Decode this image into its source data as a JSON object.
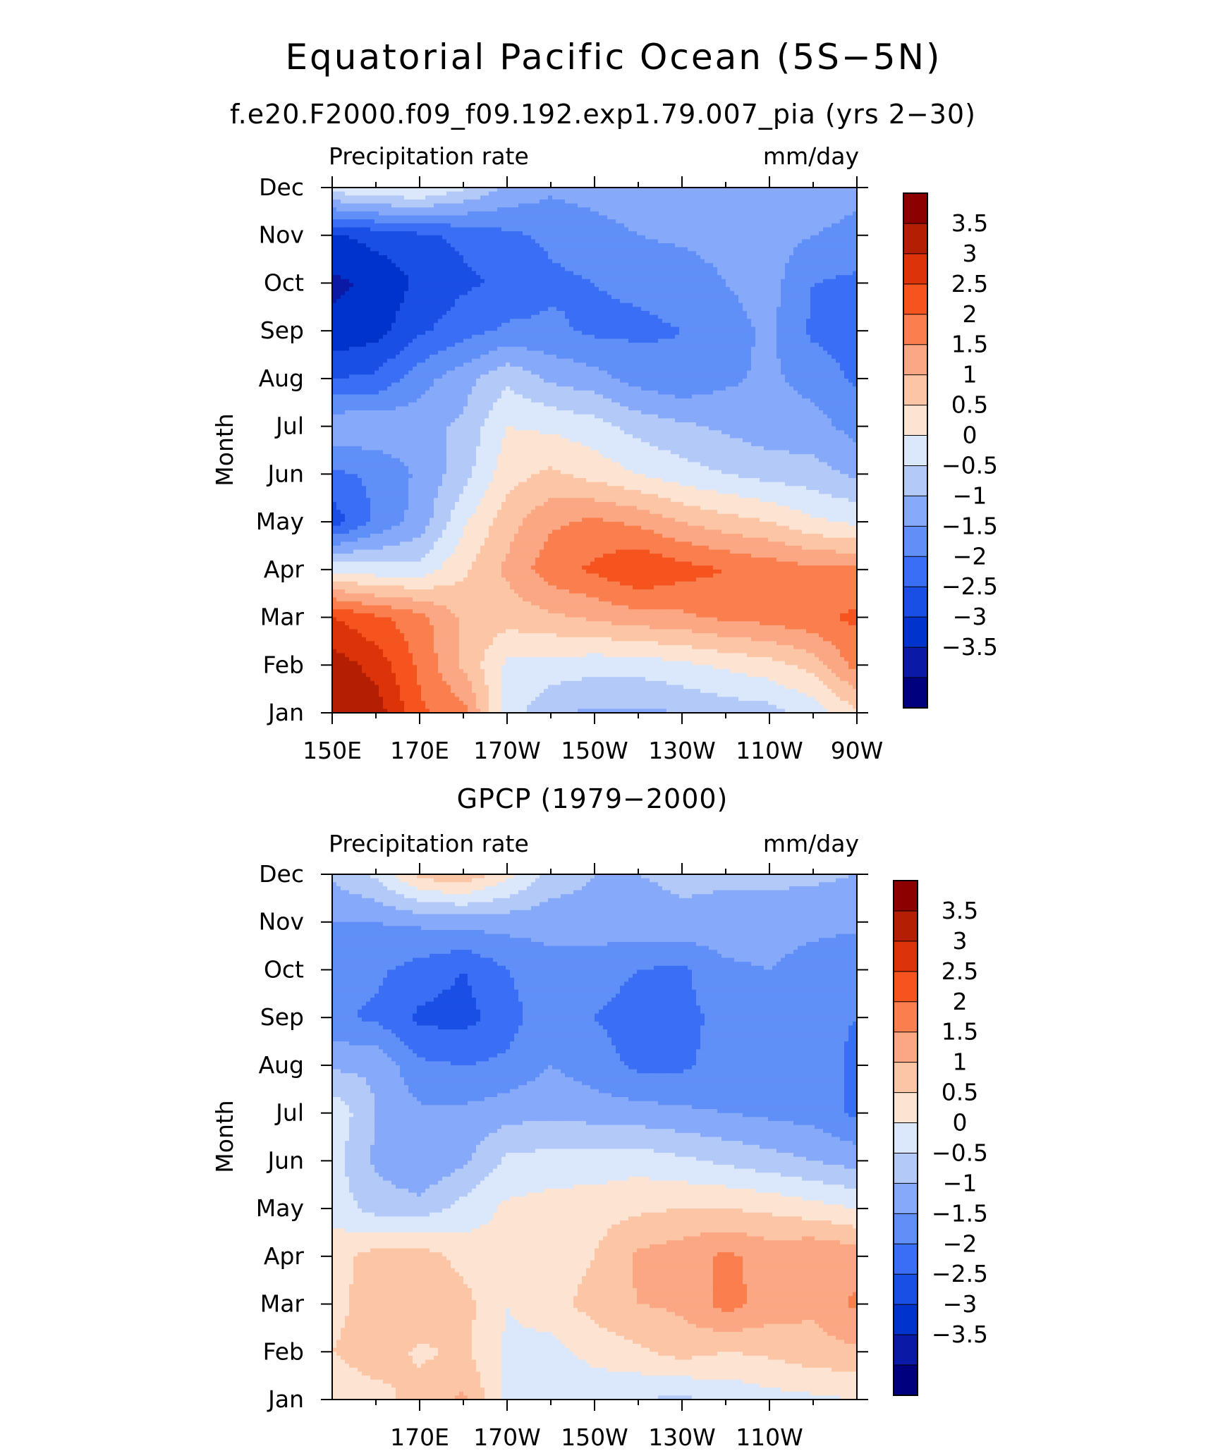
{
  "figure": {
    "title": "Equatorial Pacific Ocean (5S−5N)",
    "subtitle": "f.e20.F2000.f09_f09.192.exp1.79.007_pia (yrs 2−30)"
  },
  "chart_data": [
    {
      "type": "heatmap",
      "title": "",
      "left_label": "Precipitation rate",
      "right_label": "mm/day",
      "ylabel": "Month",
      "xlabel": "",
      "months": [
        "Jan",
        "Feb",
        "Mar",
        "Apr",
        "May",
        "Jun",
        "Jul",
        "Aug",
        "Sep",
        "Oct",
        "Nov",
        "Dec"
      ],
      "x_values": [
        150,
        160,
        170,
        180,
        190,
        200,
        210,
        220,
        230,
        240,
        250,
        260,
        270
      ],
      "x_tick_values": [
        150,
        170,
        190,
        210,
        230,
        250,
        270
      ],
      "x_tick_labels": [
        "150E",
        "170E",
        "170W",
        "150W",
        "130W",
        "110W",
        "90W"
      ],
      "levels": [
        -3.5,
        -3,
        -2.5,
        -2,
        -1.5,
        -1,
        -0.5,
        0,
        0.5,
        1,
        1.5,
        2,
        2.5,
        3,
        3.5
      ],
      "colors": [
        "#00007f",
        "#0a19a6",
        "#0033cc",
        "#1a4fe6",
        "#3a6ef5",
        "#5f8ff7",
        "#86a9fa",
        "#b3caf8",
        "#dbe7fb",
        "#fde4d2",
        "#fcc6a6",
        "#fba783",
        "#fb7e4e",
        "#f5541f",
        "#dc3309",
        "#b41e03",
        "#8c0000"
      ],
      "colorbar_labels": [
        "3.5",
        "3",
        "2.5",
        "2",
        "1.5",
        "1",
        "0.5",
        "0",
        "−0.5",
        "−1",
        "−1.5",
        "−2",
        "−2.5",
        "−3",
        "−3.5"
      ],
      "values": [
        [
          4.0,
          3.8,
          2.6,
          2.2,
          0.3,
          -0.4,
          -0.6,
          -0.6,
          -0.5,
          -0.3,
          -0.2,
          0.2,
          0.9
        ],
        [
          3.8,
          3.3,
          2.4,
          1.4,
          0.4,
          0.3,
          0.2,
          0.2,
          0.4,
          0.6,
          0.8,
          1.2,
          2.2
        ],
        [
          3.0,
          2.6,
          2.2,
          1.4,
          1.2,
          1.4,
          1.6,
          1.8,
          1.9,
          2.1,
          2.2,
          2.4,
          2.6
        ],
        [
          0.4,
          0.2,
          0.2,
          0.9,
          1.6,
          2.3,
          2.6,
          3.0,
          2.7,
          2.5,
          2.3,
          2.1,
          2.1
        ],
        [
          -2.3,
          -1.4,
          -0.8,
          0.4,
          1.3,
          1.9,
          2.1,
          1.9,
          1.5,
          1.2,
          1.0,
          0.6,
          0.4
        ],
        [
          -1.6,
          -1.4,
          -0.9,
          -0.2,
          0.8,
          1.1,
          0.8,
          0.5,
          0.2,
          0.0,
          -0.2,
          -0.3,
          -0.6
        ],
        [
          -0.6,
          -0.6,
          -0.7,
          -0.4,
          0.5,
          0.4,
          0.2,
          -0.2,
          -0.4,
          -0.6,
          -0.8,
          -0.8,
          -1.2
        ],
        [
          -2.0,
          -1.9,
          -1.2,
          -0.7,
          -0.1,
          -0.6,
          -0.8,
          -1.2,
          -1.4,
          -1.1,
          -0.9,
          -1.2,
          -1.6
        ],
        [
          -2.9,
          -2.7,
          -2.1,
          -1.7,
          -1.4,
          -1.4,
          -1.6,
          -1.6,
          -1.5,
          -1.2,
          -0.9,
          -1.6,
          -1.7
        ],
        [
          -3.1,
          -2.9,
          -2.4,
          -2.1,
          -1.9,
          -1.6,
          -1.5,
          -1.4,
          -1.3,
          -1.0,
          -0.8,
          -1.5,
          -1.6
        ],
        [
          -2.6,
          -2.3,
          -2.1,
          -1.9,
          -1.6,
          -1.4,
          -1.2,
          -1.0,
          -0.9,
          -0.8,
          -0.8,
          -1.0,
          -1.2
        ],
        [
          0.3,
          0.5,
          0.6,
          0.1,
          -0.6,
          -0.9,
          -0.8,
          -0.7,
          -0.6,
          -0.6,
          -0.6,
          -0.6,
          -0.8
        ]
      ]
    },
    {
      "type": "heatmap",
      "title": "GPCP (1979−2000)",
      "left_label": "Precipitation rate",
      "right_label": "mm/day",
      "ylabel": "Month",
      "xlabel": "",
      "months": [
        "Jan",
        "Feb",
        "Mar",
        "Apr",
        "May",
        "Jun",
        "Jul",
        "Aug",
        "Sep",
        "Oct",
        "Nov",
        "Dec"
      ],
      "x_values": [
        150,
        160,
        170,
        180,
        190,
        200,
        210,
        220,
        230,
        240,
        250,
        260,
        270
      ],
      "x_tick_values": [
        170,
        190,
        210,
        230,
        250
      ],
      "x_tick_labels": [
        "170E",
        "170W",
        "150W",
        "130W",
        "110W"
      ],
      "levels": [
        -3.5,
        -3,
        -2.5,
        -2,
        -1.5,
        -1,
        -0.5,
        0,
        0.5,
        1,
        1.5,
        2,
        2.5,
        3,
        3.5
      ],
      "colors": [
        "#00007f",
        "#0a19a6",
        "#0033cc",
        "#1a4fe6",
        "#3a6ef5",
        "#5f8ff7",
        "#86a9fa",
        "#b3caf8",
        "#dbe7fb",
        "#fde4d2",
        "#fcc6a6",
        "#fba783",
        "#fb7e4e",
        "#f5541f",
        "#dc3309",
        "#b41e03",
        "#8c0000"
      ],
      "colorbar_labels": [
        "3.5",
        "3",
        "2.5",
        "2",
        "1.5",
        "1",
        "0.5",
        "0",
        "−0.5",
        "−1",
        "−1.5",
        "−2",
        "−2.5",
        "−3",
        "−3.5"
      ],
      "values": [
        [
          0.6,
          0.8,
          1.2,
          1.6,
          0.4,
          0.1,
          0.1,
          0.0,
          -0.1,
          0.1,
          0.3,
          0.4,
          0.5
        ],
        [
          1.0,
          1.3,
          0.9,
          1.1,
          0.4,
          0.3,
          0.7,
          0.9,
          1.2,
          1.0,
          1.1,
          1.3,
          1.4
        ],
        [
          0.8,
          1.3,
          1.4,
          1.2,
          0.5,
          0.8,
          1.2,
          1.5,
          1.6,
          2.2,
          1.8,
          1.6,
          2.1
        ],
        [
          0.8,
          1.2,
          1.3,
          0.8,
          0.6,
          0.7,
          1.0,
          1.6,
          1.8,
          2.1,
          1.8,
          2.0,
          1.8
        ],
        [
          0.3,
          -0.2,
          -0.3,
          0.2,
          0.6,
          0.7,
          0.8,
          0.9,
          1.0,
          1.0,
          0.9,
          0.7,
          0.5
        ],
        [
          0.2,
          -0.6,
          -1.0,
          -0.6,
          0.1,
          0.2,
          0.2,
          0.3,
          0.1,
          -0.1,
          -0.3,
          -0.5,
          -0.7
        ],
        [
          0.4,
          -0.5,
          -0.9,
          -0.9,
          -0.7,
          -0.6,
          -0.7,
          -0.8,
          -0.9,
          -1.0,
          -1.1,
          -1.2,
          -1.6
        ],
        [
          -0.6,
          -0.6,
          -1.4,
          -1.5,
          -1.4,
          -1.0,
          -1.3,
          -1.6,
          -1.6,
          -1.3,
          -1.1,
          -1.3,
          -1.6
        ],
        [
          -1.4,
          -1.6,
          -2.1,
          -2.2,
          -1.7,
          -1.2,
          -1.5,
          -1.7,
          -1.6,
          -1.4,
          -1.2,
          -1.4,
          -1.5
        ],
        [
          -1.2,
          -1.4,
          -1.7,
          -2.0,
          -1.5,
          -1.2,
          -1.3,
          -1.5,
          -1.6,
          -1.1,
          -1.0,
          -1.3,
          -1.4
        ],
        [
          -1.0,
          -1.0,
          -0.9,
          -0.8,
          -0.8,
          -0.8,
          -0.7,
          -0.7,
          -0.6,
          -0.7,
          -0.7,
          -0.8,
          -0.9
        ],
        [
          -0.4,
          0.1,
          1.2,
          1.4,
          0.7,
          -0.2,
          -0.5,
          -0.5,
          -0.4,
          -0.4,
          -0.4,
          -0.4,
          -0.5
        ]
      ]
    }
  ]
}
